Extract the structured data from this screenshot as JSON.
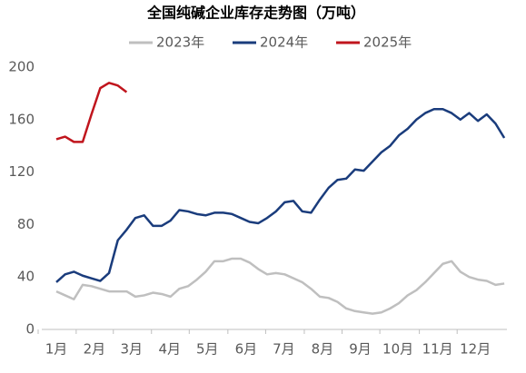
{
  "chart_data": {
    "type": "line",
    "title": "全国纯碱企业库存走势图（万吨）",
    "x": [
      1,
      2,
      3,
      4,
      5,
      6,
      7,
      8,
      9,
      10,
      11,
      12,
      13,
      14,
      15,
      16,
      17,
      18,
      19,
      20,
      21,
      22,
      23,
      24,
      25,
      26,
      27,
      28,
      29,
      30,
      31,
      32,
      33,
      34,
      35,
      36,
      37,
      38,
      39,
      40,
      41,
      42,
      43,
      44,
      45,
      46,
      47,
      48,
      49,
      50,
      51,
      52
    ],
    "xlim": [
      1,
      52.3
    ],
    "xticks": [
      {
        "value": 1,
        "label": "1月"
      },
      {
        "value": 5.33,
        "label": "2月"
      },
      {
        "value": 9.56,
        "label": "3月"
      },
      {
        "value": 13.9,
        "label": "4月"
      },
      {
        "value": 18.2,
        "label": "5月"
      },
      {
        "value": 22.6,
        "label": "6月"
      },
      {
        "value": 26.9,
        "label": "7月"
      },
      {
        "value": 31.3,
        "label": "8月"
      },
      {
        "value": 35.6,
        "label": "9月"
      },
      {
        "value": 39.9,
        "label": "10月"
      },
      {
        "value": 44.4,
        "label": "11月"
      },
      {
        "value": 48.7,
        "label": "12月"
      }
    ],
    "ylim": [
      0,
      200
    ],
    "yticks": [
      0,
      40,
      80,
      120,
      160,
      200
    ],
    "grid": false,
    "legend": "top",
    "series": [
      {
        "name": "2023年",
        "color": "#bfbfbf",
        "values": [
          29,
          26,
          23,
          34,
          33,
          31,
          29,
          29,
          29,
          25,
          26,
          28,
          27,
          25,
          31,
          33,
          38,
          44,
          52,
          52,
          54,
          54,
          51,
          46,
          42,
          43,
          42,
          39,
          36,
          31,
          25,
          24,
          21,
          16,
          14,
          13,
          12,
          13,
          16,
          20,
          26,
          30,
          36,
          43,
          50,
          52,
          44,
          40,
          38,
          37,
          34,
          35
        ]
      },
      {
        "name": "2024年",
        "color": "#1a3c7c",
        "values": [
          36,
          42,
          44,
          41,
          39,
          37,
          43,
          68,
          76,
          85,
          87,
          79,
          79,
          83,
          91,
          90,
          88,
          87,
          89,
          89,
          88,
          85,
          82,
          81,
          85,
          90,
          97,
          98,
          90,
          89,
          99,
          108,
          114,
          115,
          122,
          121,
          128,
          135,
          140,
          148,
          153,
          160,
          165,
          168,
          168,
          165,
          160,
          165,
          159,
          164,
          157,
          146
        ]
      },
      {
        "name": "2025年",
        "color": "#c0151d",
        "values": [
          145,
          147,
          143,
          143,
          164,
          184,
          188,
          186,
          181,
          null,
          null,
          null,
          null,
          null,
          null,
          null,
          null,
          null,
          null,
          null,
          null,
          null,
          null,
          null,
          null,
          null,
          null,
          null,
          null,
          null,
          null,
          null,
          null,
          null,
          null,
          null,
          null,
          null,
          null,
          null,
          null,
          null,
          null,
          null,
          null,
          null,
          null,
          null,
          null,
          null,
          null,
          null
        ]
      }
    ]
  }
}
